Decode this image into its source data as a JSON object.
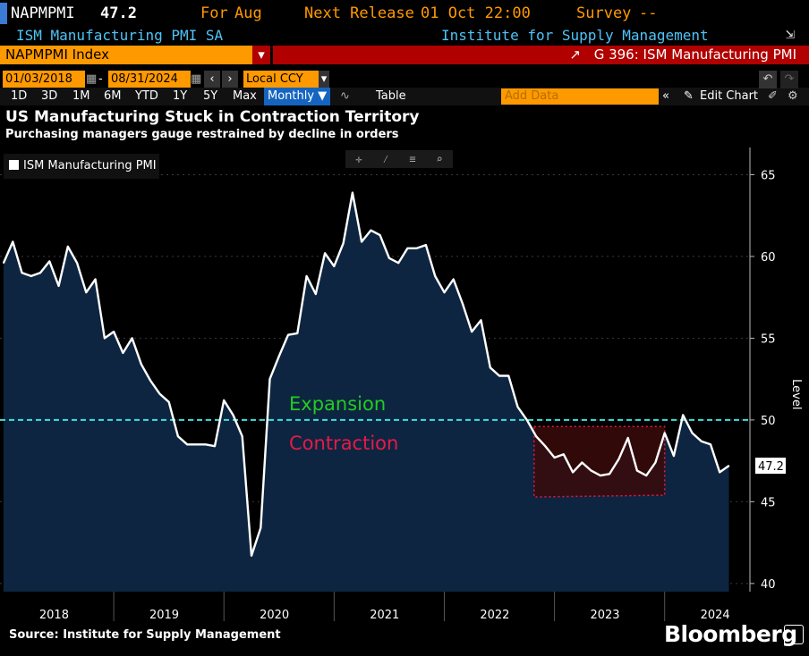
{
  "header": {
    "ticker": "NAPMPMI",
    "value": "47.2",
    "for_label": "For",
    "for_value": "Aug",
    "next_release_label": "Next Release",
    "next_release_value": "01 Oct 22:00",
    "survey_label": "Survey",
    "survey_value": "--",
    "series_name": "ISM Manufacturing PMI SA",
    "source_name": "Institute for Supply Management"
  },
  "security_bar": {
    "ticker_field": "NAPMPMI Index",
    "graph_label": "G 396: ISM Manufacturing PMI"
  },
  "date_bar": {
    "start_date": "01/03/2018",
    "end_date": "08/31/2024",
    "currency": "Local CCY"
  },
  "toolbar": {
    "ranges": [
      "1D",
      "3D",
      "1M",
      "6M",
      "YTD",
      "1Y",
      "5Y",
      "Max"
    ],
    "frequency": "Monthly ▼",
    "table_label": "Table",
    "add_data_placeholder": "Add Data",
    "edit_chart_label": "Edit Chart"
  },
  "chart_title": "US Manufacturing Stuck in Contraction Territory",
  "chart_subtitle": "Purchasing managers gauge restrained by decline in orders",
  "footer": {
    "source": "Source: Institute for Supply Management",
    "brand": "Bloomberg"
  },
  "colors": {
    "line": "#ffffff",
    "area": "#0d2540",
    "threshold": "#40e0e0",
    "expansion": "#22cc22",
    "contraction": "#e8194a",
    "highlight_fill": "#3a0a0a",
    "highlight_border": "#e8194a",
    "accent": "#ff9900"
  },
  "chart_data": {
    "type": "area",
    "title": "US Manufacturing Stuck in Contraction Territory",
    "subtitle": "Purchasing managers gauge restrained by decline in orders",
    "ylabel": "Level",
    "ylim": [
      39.5,
      66.5
    ],
    "yticks": [
      40,
      45,
      50,
      55,
      60,
      65
    ],
    "xlim": [
      "2018-01",
      "2024-10"
    ],
    "year_labels": [
      "2018",
      "2019",
      "2020",
      "2021",
      "2022",
      "2023",
      "2024"
    ],
    "threshold": 50,
    "last_value_label": "47.2",
    "annotations": [
      {
        "text": "Expansion",
        "color": "expansion"
      },
      {
        "text": "Contraction",
        "color": "contraction"
      }
    ],
    "highlight_range": {
      "x": [
        "2022-10",
        "2024-01"
      ],
      "y": [
        45.4,
        49.6
      ]
    },
    "series": [
      {
        "name": "ISM Manufacturing PMI",
        "x": [
          "2018-01",
          "2018-02",
          "2018-03",
          "2018-04",
          "2018-05",
          "2018-06",
          "2018-07",
          "2018-08",
          "2018-09",
          "2018-10",
          "2018-11",
          "2018-12",
          "2019-01",
          "2019-02",
          "2019-03",
          "2019-04",
          "2019-05",
          "2019-06",
          "2019-07",
          "2019-08",
          "2019-09",
          "2019-10",
          "2019-11",
          "2019-12",
          "2020-01",
          "2020-02",
          "2020-03",
          "2020-04",
          "2020-05",
          "2020-06",
          "2020-07",
          "2020-08",
          "2020-09",
          "2020-10",
          "2020-11",
          "2020-12",
          "2021-01",
          "2021-02",
          "2021-03",
          "2021-04",
          "2021-05",
          "2021-06",
          "2021-07",
          "2021-08",
          "2021-09",
          "2021-10",
          "2021-11",
          "2021-12",
          "2022-01",
          "2022-02",
          "2022-03",
          "2022-04",
          "2022-05",
          "2022-06",
          "2022-07",
          "2022-08",
          "2022-09",
          "2022-10",
          "2022-11",
          "2022-12",
          "2023-01",
          "2023-02",
          "2023-03",
          "2023-04",
          "2023-05",
          "2023-06",
          "2023-07",
          "2023-08",
          "2023-09",
          "2023-10",
          "2023-11",
          "2023-12",
          "2024-01",
          "2024-02",
          "2024-03",
          "2024-04",
          "2024-05",
          "2024-06",
          "2024-07",
          "2024-08"
        ],
        "values": [
          59.6,
          60.9,
          59.0,
          58.8,
          59.0,
          59.7,
          58.2,
          60.6,
          59.6,
          57.8,
          58.6,
          55.0,
          55.4,
          54.1,
          55.0,
          53.4,
          52.4,
          51.6,
          51.1,
          49.0,
          48.5,
          48.5,
          48.5,
          48.4,
          51.2,
          50.3,
          49.0,
          41.7,
          43.4,
          52.5,
          53.9,
          55.2,
          55.3,
          58.8,
          57.7,
          60.2,
          59.4,
          60.8,
          63.9,
          60.9,
          61.6,
          61.3,
          59.9,
          59.6,
          60.5,
          60.5,
          60.7,
          58.8,
          57.8,
          58.6,
          57.1,
          55.4,
          56.1,
          53.2,
          52.7,
          52.7,
          50.8,
          50.0,
          49.0,
          48.4,
          47.7,
          47.9,
          46.8,
          47.4,
          46.9,
          46.6,
          46.7,
          47.6,
          48.9,
          46.9,
          46.6,
          47.4,
          49.2,
          47.8,
          50.3,
          49.2,
          48.7,
          48.5,
          46.8,
          47.2
        ]
      }
    ]
  }
}
